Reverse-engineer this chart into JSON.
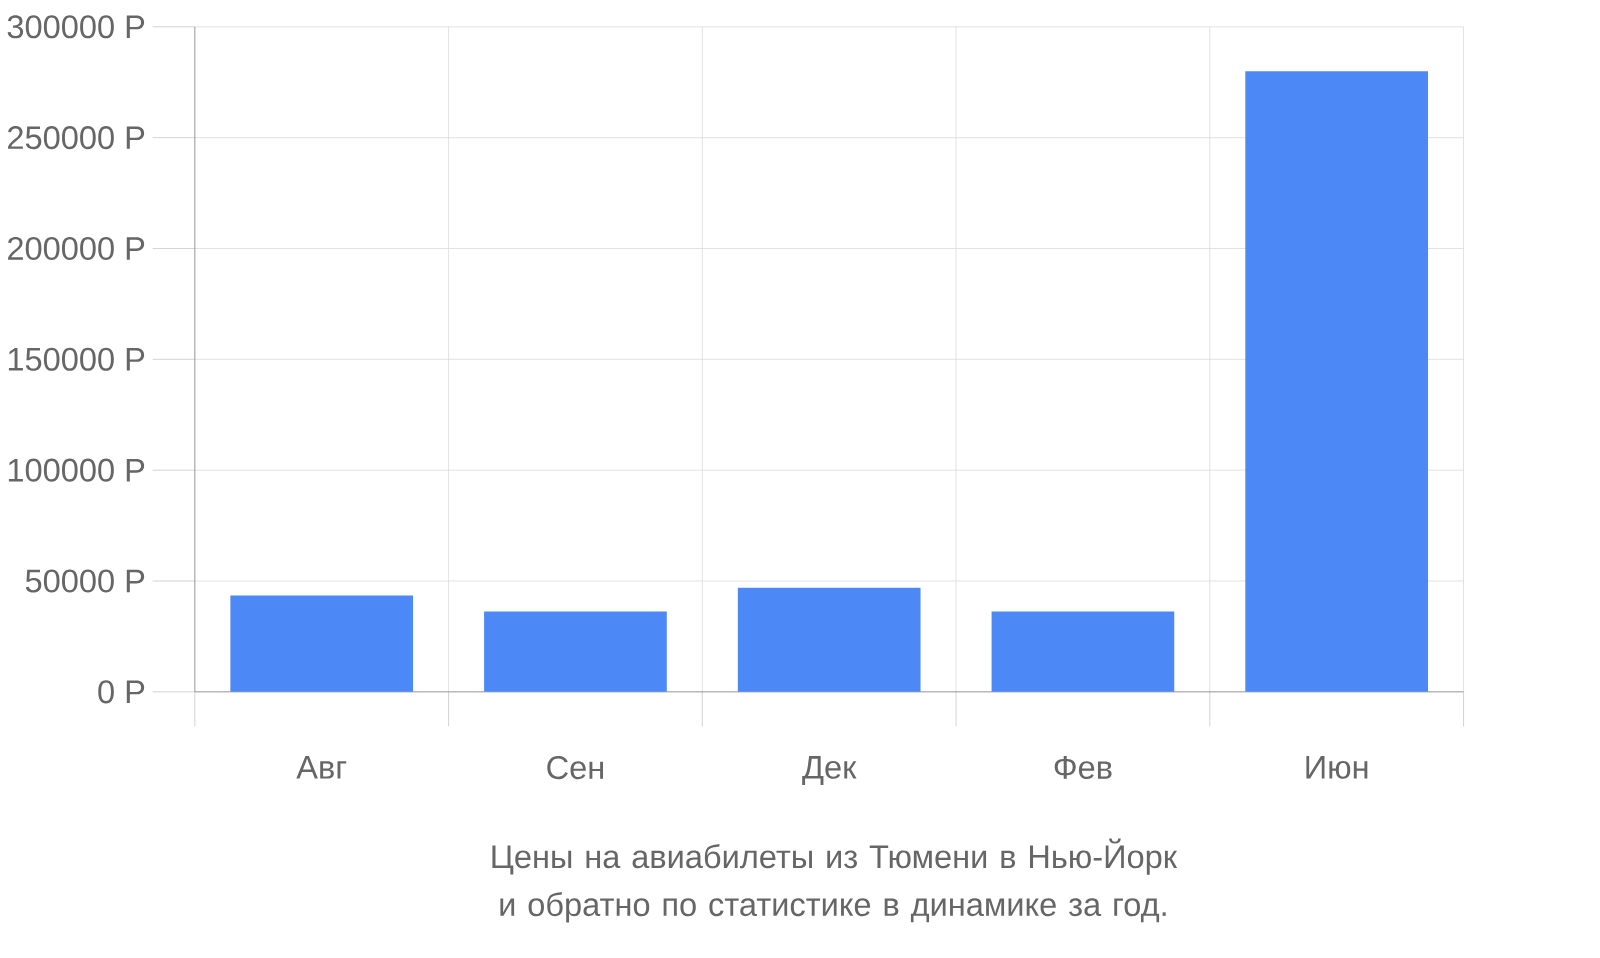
{
  "chart_data": {
    "type": "bar",
    "title": "Цены на авиабилеты из Тюмени в Нью-Йорк и обратно по статистике в динамике за год.",
    "categories": [
      "Авг",
      "Сен",
      "Дек",
      "Фев",
      "Июн"
    ],
    "values": [
      43500,
      36200,
      46900,
      36200,
      280000
    ],
    "color": "#4d88f7",
    "ylim": [
      0,
      300000
    ],
    "yticks": [
      {
        "value": 0,
        "label": "0 Р"
      },
      {
        "value": 50000,
        "label": "50000 Р"
      },
      {
        "value": 100000,
        "label": "100000 Р"
      },
      {
        "value": 150000,
        "label": "150000 Р"
      },
      {
        "value": 200000,
        "label": "200000 Р"
      },
      {
        "value": 250000,
        "label": "250000 Р"
      },
      {
        "value": 300000,
        "label": "300000 Р"
      }
    ],
    "grid": true
  }
}
